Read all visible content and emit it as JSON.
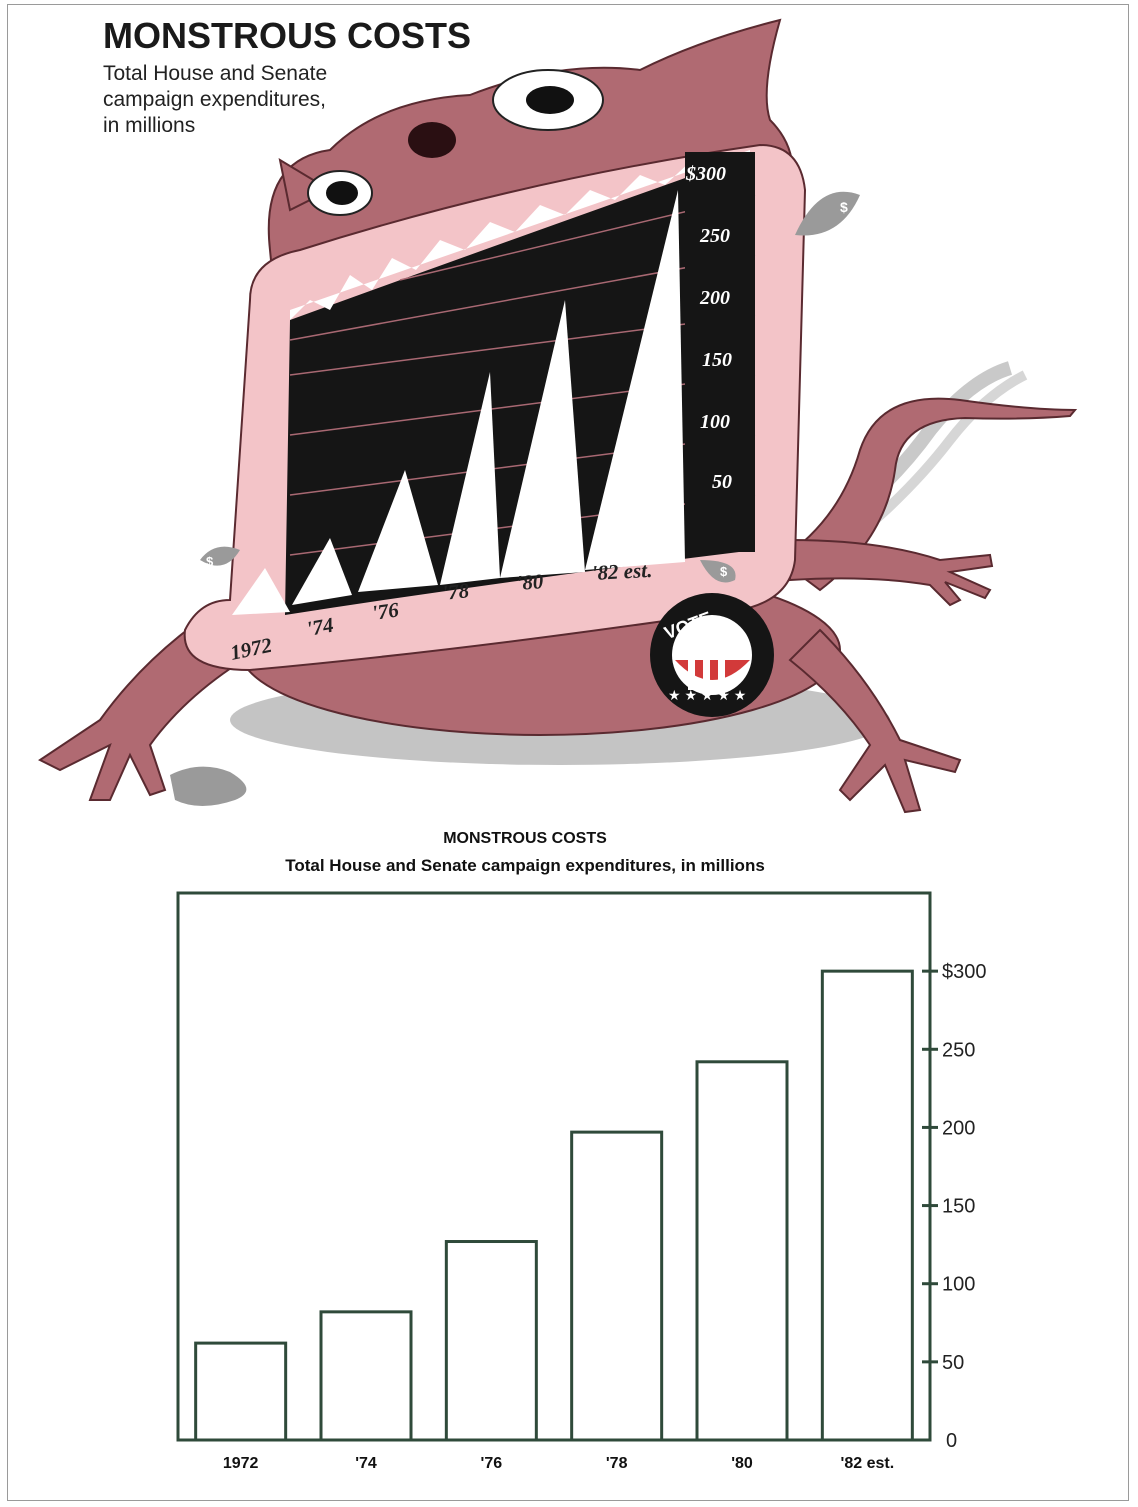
{
  "illustration": {
    "title": "MONSTROUS COSTS",
    "subtitle_lines": [
      "Total House and Senate",
      "campaign expenditures,",
      "in millions"
    ],
    "axis_labels": [
      "$300",
      "250",
      "200",
      "150",
      "100",
      "50"
    ],
    "year_labels": [
      "1972",
      "'74",
      "'76",
      "'78",
      "'80",
      "'82 est."
    ],
    "badge_text": "VOTE",
    "dollar_glyph": "$",
    "colors": {
      "monster_body": "#b06a72",
      "mouth": "#151515",
      "lips": "#f3c4c8",
      "teeth": "#ffffff",
      "shadow": "#b8b8b8"
    }
  },
  "chart_data": {
    "type": "bar",
    "title": "MONSTROUS COSTS",
    "subtitle": "Total House and Senate campaign expenditures, in millions",
    "categories": [
      "1972",
      "'74",
      "'76",
      "'78",
      "'80",
      "'82 est."
    ],
    "values": [
      62,
      82,
      127,
      197,
      242,
      300
    ],
    "ylim": [
      0,
      350
    ],
    "yticks": [
      0,
      50,
      100,
      150,
      200,
      250,
      300
    ],
    "ytick_labels": [
      "0",
      "50",
      "100",
      "150",
      "200",
      "250",
      "$300"
    ],
    "y_axis_side": "right",
    "grid": false,
    "colors": {
      "frame": "#2f4a3a",
      "bar_fill": "#ffffff",
      "bar_stroke": "#2f4a3a"
    }
  }
}
